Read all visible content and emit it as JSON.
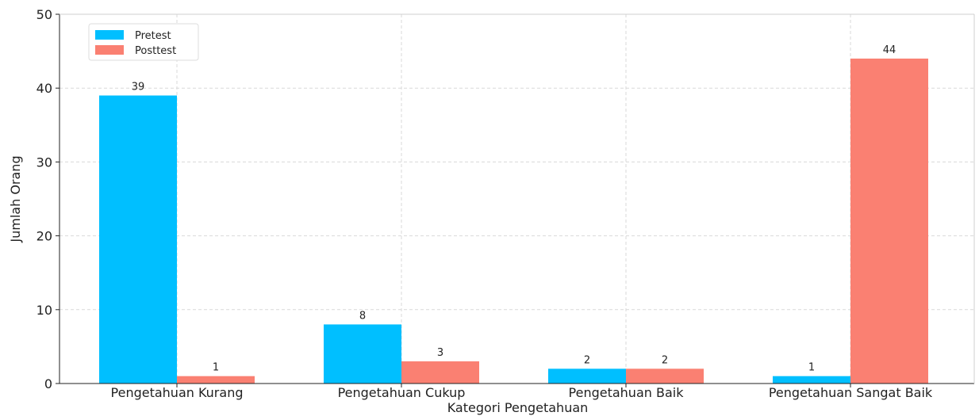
{
  "chart_data": {
    "type": "bar",
    "title": "",
    "xlabel": "Kategori Pengetahuan",
    "ylabel": "Jumlah Orang",
    "categories": [
      "Pengetahuan Kurang",
      "Pengetahuan Cukup",
      "Pengetahuan Baik",
      "Pengetahuan Sangat Baik"
    ],
    "series": [
      {
        "name": "Pretest",
        "values": [
          39,
          8,
          2,
          1
        ],
        "color": "#00BFFF"
      },
      {
        "name": "Posttest",
        "values": [
          1,
          3,
          2,
          44
        ],
        "color": "#FA8072"
      }
    ],
    "ylim": [
      0,
      50
    ],
    "yticks": [
      0,
      10,
      20,
      30,
      40,
      50
    ],
    "grid": true,
    "legend": "top-left"
  }
}
